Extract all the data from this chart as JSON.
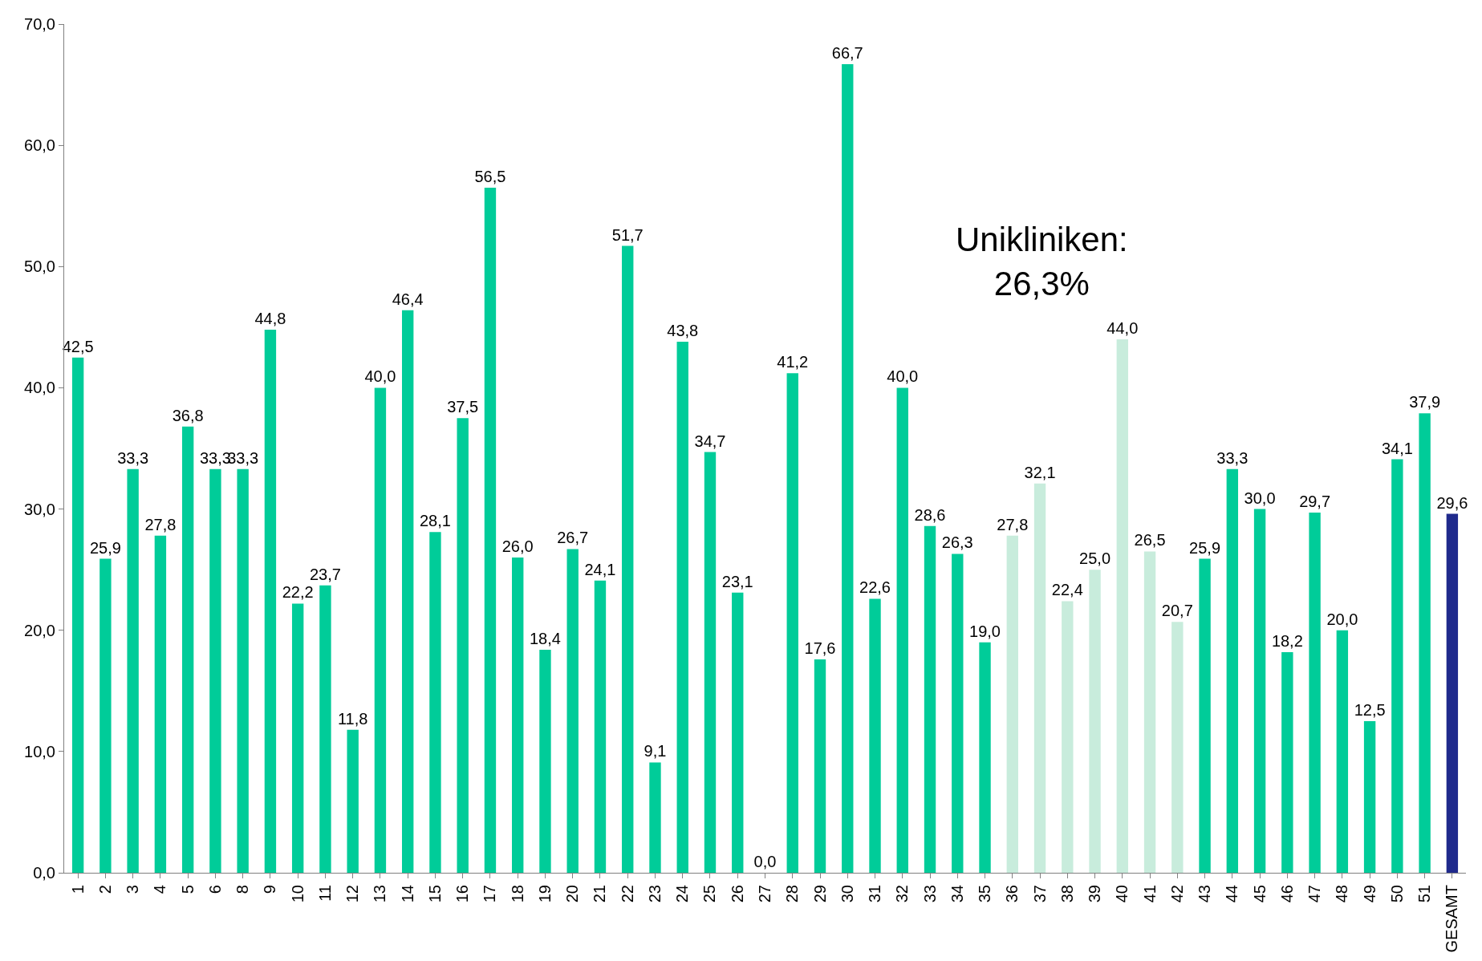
{
  "chart_data": {
    "type": "bar",
    "categories": [
      "1",
      "2",
      "3",
      "4",
      "5",
      "6",
      "8",
      "9",
      "10",
      "11",
      "12",
      "13",
      "14",
      "15",
      "16",
      "17",
      "18",
      "19",
      "20",
      "21",
      "22",
      "23",
      "24",
      "25",
      "26",
      "27",
      "28",
      "29",
      "30",
      "31",
      "32",
      "33",
      "34",
      "35",
      "36",
      "37",
      "38",
      "39",
      "40",
      "41",
      "42",
      "43",
      "44",
      "45",
      "46",
      "47",
      "48",
      "49",
      "50",
      "51",
      "GESAMT"
    ],
    "values": [
      42.5,
      25.9,
      33.3,
      27.8,
      36.8,
      33.3,
      33.3,
      44.8,
      22.2,
      23.7,
      11.8,
      40.0,
      46.4,
      28.1,
      37.5,
      56.5,
      26.0,
      18.4,
      26.7,
      24.1,
      51.7,
      9.1,
      43.8,
      34.7,
      23.1,
      0.0,
      41.2,
      17.6,
      66.7,
      22.6,
      40.0,
      28.6,
      26.3,
      19.0,
      27.8,
      32.1,
      22.4,
      25.0,
      44.0,
      26.5,
      20.7,
      25.9,
      33.3,
      30.0,
      18.2,
      29.7,
      20.0,
      12.5,
      34.1,
      37.9,
      29.6
    ],
    "value_labels": [
      "42,5",
      "25,9",
      "33,3",
      "27,8",
      "36,8",
      "33,3",
      "33,3",
      "44,8",
      "22,2",
      "23,7",
      "11,8",
      "40,0",
      "46,4",
      "28,1",
      "37,5",
      "56,5",
      "26,0",
      "18,4",
      "26,7",
      "24,1",
      "51,7",
      "9,1",
      "43,8",
      "34,7",
      "23,1",
      "0,0",
      "41,2",
      "17,6",
      "66,7",
      "22,6",
      "40,0",
      "28,6",
      "26,3",
      "19,0",
      "27,8",
      "32,1",
      "22,4",
      "25,0",
      "44,0",
      "26,5",
      "20,7",
      "25,9",
      "33,3",
      "30,0",
      "18,2",
      "29,7",
      "20,0",
      "12,5",
      "34,1",
      "37,9",
      "29,6"
    ],
    "colors": [
      "#00cc99",
      "#00cc99",
      "#00cc99",
      "#00cc99",
      "#00cc99",
      "#00cc99",
      "#00cc99",
      "#00cc99",
      "#00cc99",
      "#00cc99",
      "#00cc99",
      "#00cc99",
      "#00cc99",
      "#00cc99",
      "#00cc99",
      "#00cc99",
      "#00cc99",
      "#00cc99",
      "#00cc99",
      "#00cc99",
      "#00cc99",
      "#00cc99",
      "#00cc99",
      "#00cc99",
      "#00cc99",
      "#00cc99",
      "#00cc99",
      "#00cc99",
      "#00cc99",
      "#00cc99",
      "#00cc99",
      "#00cc99",
      "#00cc99",
      "#00cc99",
      "#c8ecdc",
      "#c8ecdc",
      "#c8ecdc",
      "#c8ecdc",
      "#c8ecdc",
      "#c8ecdc",
      "#c8ecdc",
      "#00cc99",
      "#00cc99",
      "#00cc99",
      "#00cc99",
      "#00cc99",
      "#00cc99",
      "#00cc99",
      "#00cc99",
      "#00cc99",
      "#1f2a8c"
    ],
    "ylim": [
      0,
      70
    ],
    "yticks": [
      {
        "value": 0,
        "label": "0,0"
      },
      {
        "value": 10,
        "label": "10,0"
      },
      {
        "value": 20,
        "label": "20,0"
      },
      {
        "value": 30,
        "label": "30,0"
      },
      {
        "value": 40,
        "label": "40,0"
      },
      {
        "value": 50,
        "label": "50,0"
      },
      {
        "value": 60,
        "label": "60,0"
      },
      {
        "value": 70,
        "label": "70,0"
      }
    ],
    "annotations": [
      "Unikliniken:\n26,3%"
    ],
    "legend": false
  }
}
